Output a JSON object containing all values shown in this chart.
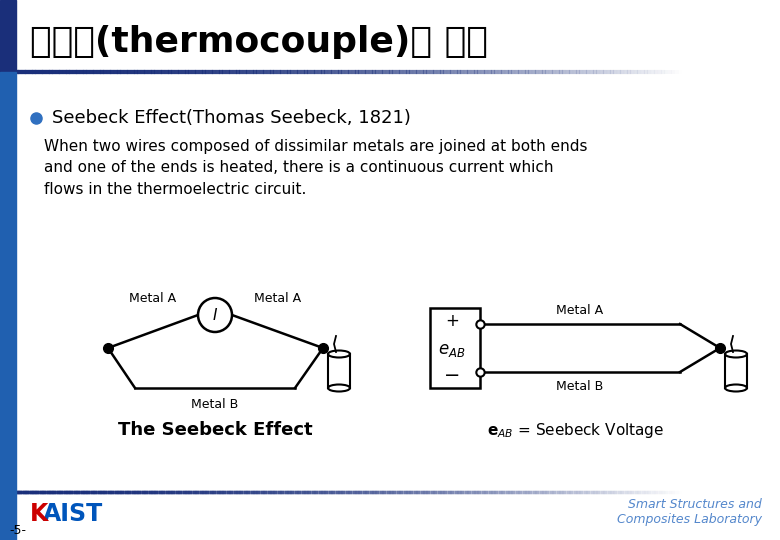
{
  "title": "열전대(thermocouple)의 원리",
  "bullet": "Seebeck Effect(Thomas Seebeck, 1821)",
  "body_line1": "When two wires composed of dissimilar metals are joined at both ends",
  "body_line2": "and one of the ends is heated, there is a continuous current which",
  "body_line3": "flows in the thermoelectric circuit.",
  "diagram1_caption": "The Seebeck Effect",
  "metal_a": "Metal A",
  "metal_b": "Metal B",
  "header_dark_color": "#1A2F7A",
  "left_bar_color": "#2060B0",
  "bullet_color": "#3070C0",
  "blue_accent": "#3060B0",
  "kaist_blue": "#0055BB",
  "kaist_red": "#CC0000",
  "footer_italic_color": "#5588CC",
  "bg_color": "#FFFFFF",
  "page_num": "-5-",
  "gradient_line_start": "#1A2F7A",
  "gradient_line_end": "#FFFFFF"
}
